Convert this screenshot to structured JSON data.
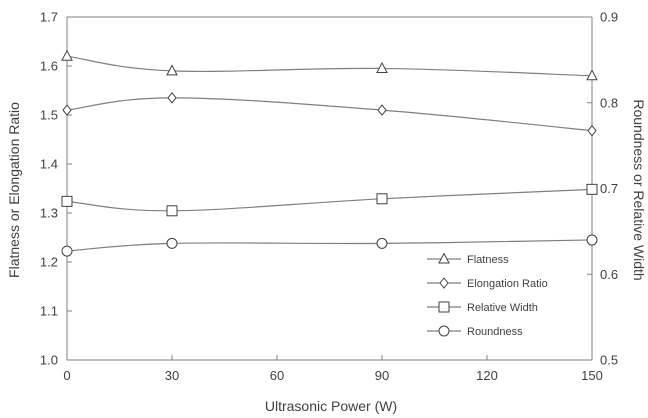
{
  "chart_data": {
    "type": "line",
    "x": [
      0,
      30,
      90,
      150
    ],
    "xlabel": "Ultrasonic Power (W)",
    "ylabel_left": "Flatness or Elongation Ratio",
    "ylabel_right": "Roundness or Relative Width",
    "xlim": [
      0,
      150
    ],
    "xticks": [
      0,
      30,
      60,
      90,
      120,
      150
    ],
    "ylim_left": [
      1.0,
      1.7
    ],
    "yticks_left": [
      1.0,
      1.1,
      1.2,
      1.3,
      1.4,
      1.5,
      1.6,
      1.7
    ],
    "ylim_right": [
      0.5,
      0.9
    ],
    "yticks_right": [
      0.5,
      0.6,
      0.7,
      0.8,
      0.9
    ],
    "grid": false,
    "legend_position": "bottom-right",
    "series": [
      {
        "name": "Flatness",
        "axis": "left",
        "marker": "triangle",
        "values": [
          1.62,
          1.59,
          1.595,
          1.58
        ]
      },
      {
        "name": "Elongation Ratio",
        "axis": "left",
        "marker": "diamond",
        "values": [
          1.51,
          1.535,
          1.51,
          1.468
        ]
      },
      {
        "name": "Relative Width",
        "axis": "right",
        "marker": "square",
        "values": [
          0.685,
          0.674,
          0.688,
          0.699
        ]
      },
      {
        "name": "Roundness",
        "axis": "right",
        "marker": "circle",
        "values": [
          0.627,
          0.636,
          0.636,
          0.64
        ]
      }
    ]
  }
}
